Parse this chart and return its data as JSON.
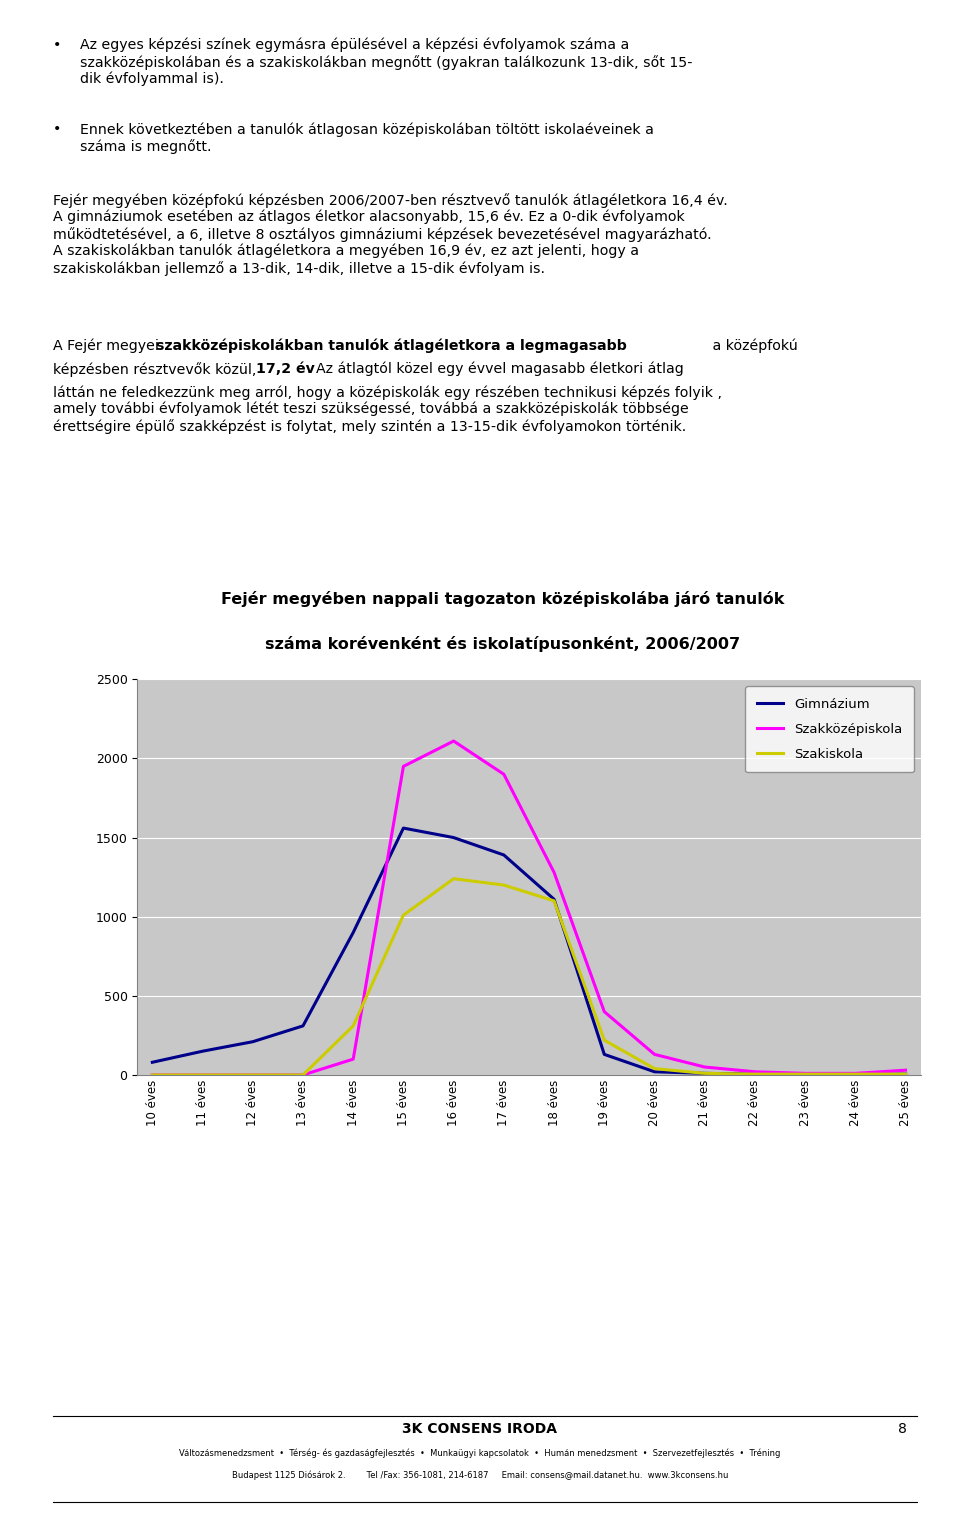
{
  "title_line1": "Fejér megyében nappali tagozaton középiskolába járó tanulók",
  "title_line2": "száma korévenként és iskolatípusonként, 2006/2007",
  "x_labels": [
    "10 éves",
    "11 éves",
    "12 éves",
    "13 éves",
    "14 éves",
    "15 éves",
    "16 éves",
    "17 éves",
    "18 éves",
    "19 éves",
    "20 éves",
    "21 éves",
    "22 éves",
    "23 éves",
    "24 éves",
    "25 éves"
  ],
  "gimnazium": [
    80,
    150,
    210,
    310,
    900,
    1560,
    1500,
    1390,
    1110,
    130,
    20,
    10,
    5,
    5,
    5,
    5
  ],
  "szakkozepiskola": [
    0,
    0,
    0,
    0,
    100,
    1950,
    2110,
    1900,
    1280,
    400,
    130,
    50,
    20,
    10,
    10,
    30
  ],
  "szakiskola": [
    0,
    0,
    0,
    0,
    310,
    1010,
    1240,
    1200,
    1100,
    220,
    40,
    10,
    5,
    5,
    5,
    5
  ],
  "gimnazium_color": "#00008B",
  "szakkozepiskola_color": "#FF00FF",
  "szakiskola_color": "#CCCC00",
  "ylim": [
    0,
    2500
  ],
  "yticks": [
    0,
    500,
    1000,
    1500,
    2000,
    2500
  ],
  "chart_bg_color": "#C8C8C8",
  "legend_labels": [
    "Gimnázium",
    "Szakközépiskola",
    "Szakiskola"
  ],
  "footer_center": "3K CONSENS IRODA",
  "footer_sub": "Változásmenedzsment  •  Térség- és gazdaságfejlesztés  •  Munkaügyi kapcsolatok  •  Humán menedzsment  •  Szervezetfejlesztés  •  Tréning",
  "footer_address": "Budapest 1125 Diósárok 2.        Tel /Fax: 356-1081, 214-6187     Email: consens@mail.datanet.hu.  www.3kconsens.hu",
  "page_num": "8"
}
